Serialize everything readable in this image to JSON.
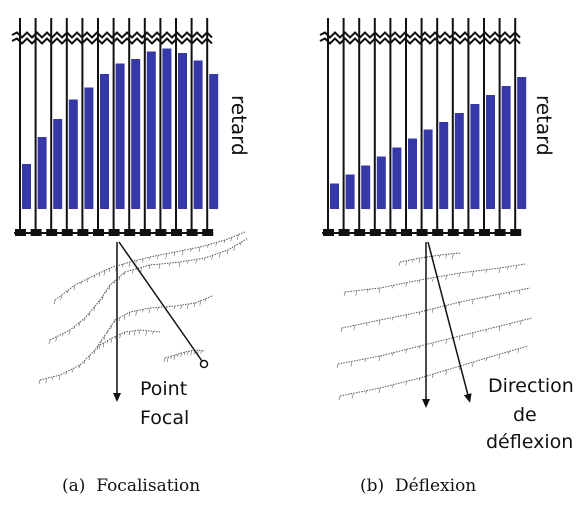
{
  "panels": [
    {
      "id": "a",
      "caption": "(a)  Focalisation",
      "delay_label": "retard",
      "point_label_line1": "Point",
      "point_label_line2": "Focal",
      "bar_delays": [
        0.3,
        0.48,
        0.6,
        0.73,
        0.81,
        0.9,
        0.97,
        1.0,
        1.05,
        1.07,
        1.04,
        0.99,
        0.9
      ]
    },
    {
      "id": "b",
      "caption": "(b)  Déflexion",
      "delay_label": "retard",
      "direction_label_line1": "Direction",
      "direction_label_line2": "de",
      "direction_label_line3": "déflexion",
      "bar_delays": [
        0.17,
        0.23,
        0.29,
        0.35,
        0.41,
        0.47,
        0.53,
        0.58,
        0.64,
        0.7,
        0.76,
        0.82,
        0.88
      ]
    }
  ],
  "colors": {
    "bar": "#3638a8",
    "line": "#111111"
  }
}
